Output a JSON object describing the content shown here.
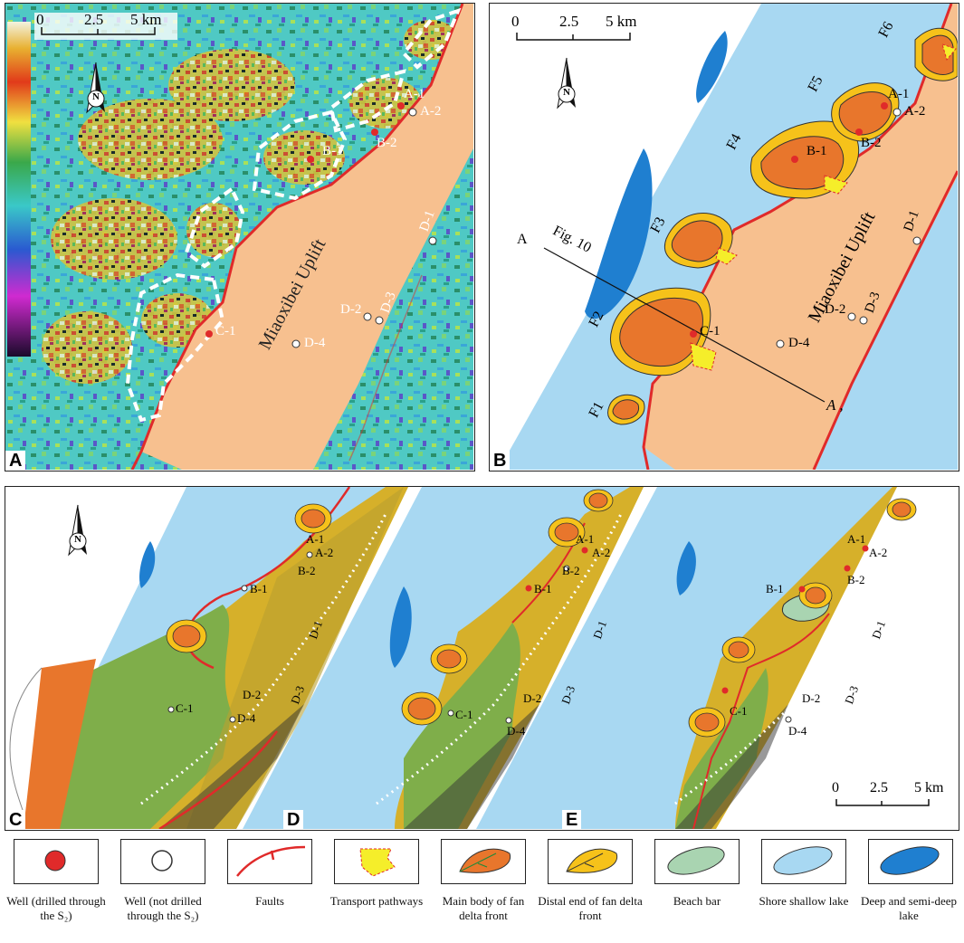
{
  "panels": {
    "A": {
      "label": "A"
    },
    "B": {
      "label": "B"
    },
    "C": {
      "label": "C"
    },
    "D": {
      "label": "D"
    },
    "E": {
      "label": "E"
    }
  },
  "scale": {
    "zero": "0",
    "mid": "2.5",
    "end": "5 km"
  },
  "north": "N",
  "uplift_label": "Miaoxibei Uplift",
  "wells": {
    "A1": "A-1",
    "A2": "A-2",
    "B1": "B-1",
    "B2": "B-2",
    "C1": "C-1",
    "D1": "D-1",
    "D2": "D-2",
    "D3": "D-3",
    "D4": "D-4"
  },
  "fans": [
    "F1",
    "F2",
    "F3",
    "F4",
    "F5",
    "F6"
  ],
  "section": {
    "fig": "Fig. 10",
    "start": "A",
    "end": "A ,"
  },
  "colors": {
    "well_drilled": "#e02a2a",
    "fault": "#e02a2a",
    "uplift": "#f7c08f",
    "shallow_lake": "#a8d8f2",
    "deep_lake": "#1f7fd0",
    "fan_main": "#e8762c",
    "fan_distal": "#f6c21a",
    "transport": "#f5ee2a",
    "beach_bar": "#a9d4b1"
  },
  "legend": [
    {
      "id": "well-drilled",
      "label": "Well (drilled through the S₂)"
    },
    {
      "id": "well-not-drilled",
      "label": "Well (not drilled through the S₂)"
    },
    {
      "id": "faults",
      "label": "Faults"
    },
    {
      "id": "transport",
      "label": "Transport pathways"
    },
    {
      "id": "fan-main",
      "label": "Main body of fan delta front"
    },
    {
      "id": "fan-distal",
      "label": "Distal end of fan delta front"
    },
    {
      "id": "beach-bar",
      "label": "Beach bar"
    },
    {
      "id": "shallow-lake",
      "label": "Shore shallow lake"
    },
    {
      "id": "deep-lake",
      "label": "Deep and semi-deep lake"
    }
  ]
}
